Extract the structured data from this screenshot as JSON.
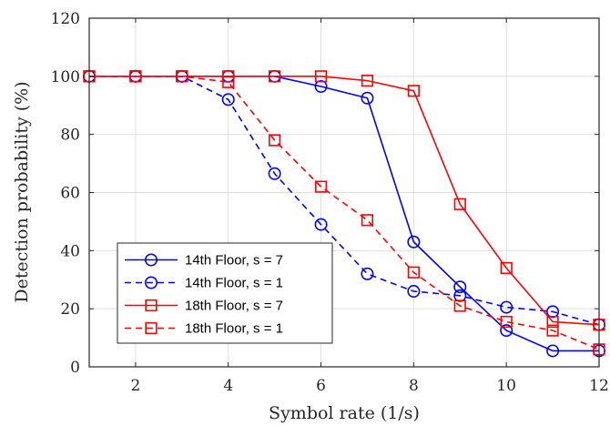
{
  "chart_data": {
    "type": "line",
    "title": "",
    "xlabel": "Symbol rate (1/s)",
    "ylabel": "Detection probability (%)",
    "xlim": [
      1,
      12
    ],
    "ylim": [
      0,
      120
    ],
    "xticks": [
      2,
      4,
      6,
      8,
      10,
      12
    ],
    "yticks": [
      0,
      20,
      40,
      60,
      80,
      100,
      120
    ],
    "grid": true,
    "legend_position": "bottom-left",
    "x": [
      1,
      2,
      3,
      4,
      5,
      6,
      7,
      8,
      9,
      10,
      11,
      12
    ],
    "series": [
      {
        "name": "14th Floor, s = 7",
        "color": "#0000ff",
        "line_style": "solid",
        "marker": "circle",
        "values": [
          100,
          100,
          100,
          100,
          100,
          96.5,
          92.5,
          43,
          27.5,
          12.5,
          5.5,
          5.5
        ]
      },
      {
        "name": "14th Floor, s = 1",
        "color": "#0000ff",
        "line_style": "dashed",
        "marker": "circle",
        "values": [
          100,
          100,
          100,
          92,
          66.5,
          49,
          32,
          26,
          24.5,
          20.5,
          19,
          14.5
        ]
      },
      {
        "name": "18th Floor, s = 7",
        "color": "#ff0000",
        "line_style": "solid",
        "marker": "square",
        "values": [
          100,
          100,
          100,
          100,
          100,
          100,
          98.5,
          95,
          56,
          34,
          15.5,
          14.5
        ]
      },
      {
        "name": "18th Floor, s = 1",
        "color": "#ff0000",
        "line_style": "dashed",
        "marker": "square",
        "values": [
          100,
          100,
          100,
          98,
          78,
          62,
          50.5,
          32.5,
          21,
          15.5,
          12.5,
          6
        ]
      }
    ]
  }
}
